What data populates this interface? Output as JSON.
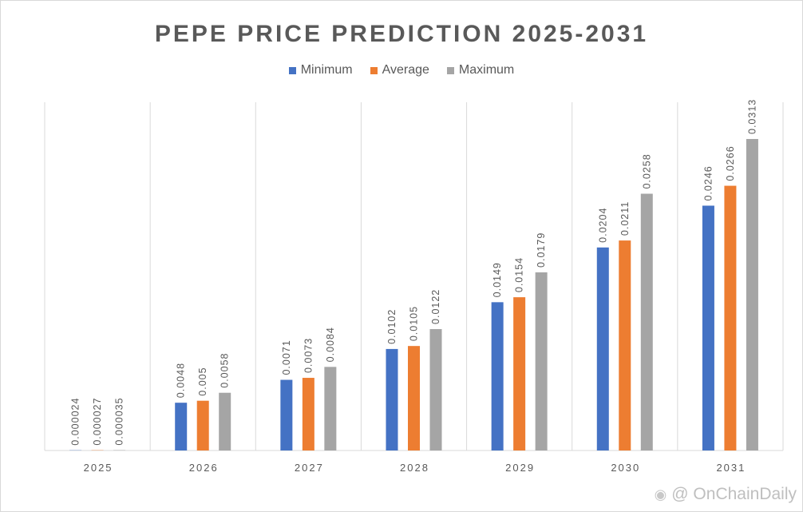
{
  "chart_data": {
    "type": "bar",
    "title": "PEPE PRICE PREDICTION 2025-2031",
    "categories": [
      "2025",
      "2026",
      "2027",
      "2028",
      "2029",
      "2030",
      "2031"
    ],
    "series": [
      {
        "name": "Minimum",
        "color": "#4472c4",
        "values": [
          2.4e-05,
          0.0048,
          0.0071,
          0.0102,
          0.0149,
          0.0204,
          0.0246
        ],
        "labels": [
          "0.000024",
          "0.0048",
          "0.0071",
          "0.0102",
          "0.0149",
          "0.0204",
          "0.0246"
        ]
      },
      {
        "name": "Average",
        "color": "#ed7d31",
        "values": [
          2.7e-05,
          0.005,
          0.0073,
          0.0105,
          0.0154,
          0.0211,
          0.0266
        ],
        "labels": [
          "0.000027",
          "0.005",
          "0.0073",
          "0.0105",
          "0.0154",
          "0.0211",
          "0.0266"
        ]
      },
      {
        "name": "Maximum",
        "color": "#a5a5a5",
        "values": [
          3.5e-05,
          0.0058,
          0.0084,
          0.0122,
          0.0179,
          0.0258,
          0.0313
        ],
        "labels": [
          "0.000035",
          "0.0058",
          "0.0084",
          "0.0122",
          "0.0179",
          "0.0258",
          "0.0313"
        ]
      }
    ],
    "xlabel": "",
    "ylabel": "",
    "ylim": [
      0,
      0.035
    ],
    "grid": "vertical category separators",
    "legend": "top-center"
  },
  "watermark": {
    "icon": "weibo-icon",
    "text": "@ OnChainDaily"
  }
}
